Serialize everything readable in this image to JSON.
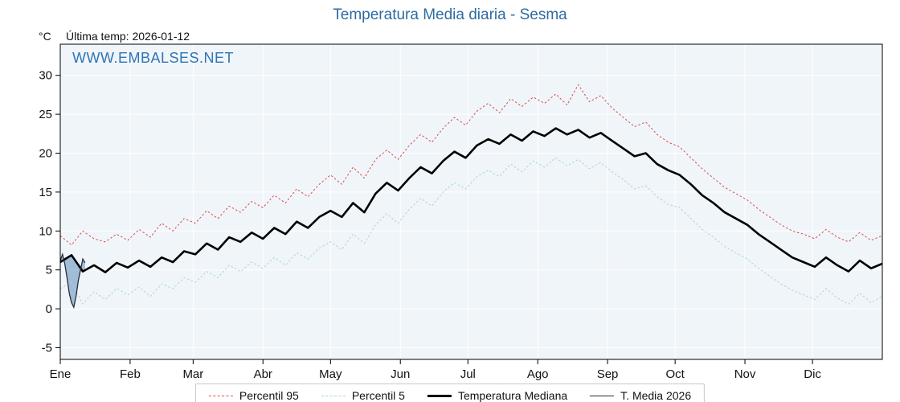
{
  "header": {
    "last_temp": "Última temp: 2026-01-12"
  },
  "watermark": {
    "text": "WWW.EMBALSES.NET"
  },
  "chart_data": {
    "type": "line",
    "title": "Temperatura Media diaria - Sesma",
    "ylabel": "°C",
    "xlabel": "",
    "grid": true,
    "legend_position": "bottom",
    "plot_bg": "#f0f5f9",
    "grid_color": "#ffffff",
    "ylim": [
      -6.5,
      34
    ],
    "yticks": [
      -5,
      0,
      5,
      10,
      15,
      20,
      25,
      30
    ],
    "xlim_days": [
      1,
      366
    ],
    "months": [
      {
        "label": "Ene",
        "start_day": 1
      },
      {
        "label": "Feb",
        "start_day": 32
      },
      {
        "label": "Mar",
        "start_day": 60
      },
      {
        "label": "Abr",
        "start_day": 91
      },
      {
        "label": "May",
        "start_day": 121
      },
      {
        "label": "Jun",
        "start_day": 152
      },
      {
        "label": "Jul",
        "start_day": 182
      },
      {
        "label": "Ago",
        "start_day": 213
      },
      {
        "label": "Sep",
        "start_day": 244
      },
      {
        "label": "Oct",
        "start_day": 274
      },
      {
        "label": "Nov",
        "start_day": 305
      },
      {
        "label": "Dic",
        "start_day": 335
      }
    ],
    "legend": [
      "Percentil 95",
      "Percentil 5",
      "Temperatura Mediana",
      "T. Media 2026"
    ],
    "x_days": [
      1,
      6,
      11,
      16,
      21,
      26,
      31,
      36,
      41,
      46,
      51,
      56,
      61,
      66,
      71,
      76,
      81,
      86,
      91,
      96,
      101,
      106,
      111,
      116,
      121,
      126,
      131,
      136,
      141,
      146,
      151,
      156,
      161,
      166,
      171,
      176,
      181,
      186,
      191,
      196,
      201,
      206,
      211,
      216,
      221,
      226,
      231,
      236,
      241,
      246,
      251,
      256,
      261,
      266,
      271,
      276,
      281,
      286,
      291,
      296,
      301,
      306,
      311,
      316,
      321,
      326,
      331,
      336,
      341,
      346,
      351,
      356,
      361,
      366
    ],
    "series": [
      {
        "name": "Percentil 95",
        "color": "#d94b4b",
        "dash": "2.5 2.5",
        "width": 1,
        "values": [
          9.4,
          8.2,
          10.0,
          9.0,
          8.6,
          9.6,
          8.8,
          10.2,
          9.2,
          11.0,
          10.0,
          11.6,
          11.0,
          12.6,
          11.6,
          13.2,
          12.4,
          13.8,
          13.0,
          14.6,
          13.6,
          15.4,
          14.4,
          16.0,
          17.2,
          16.0,
          18.2,
          16.8,
          19.2,
          20.4,
          19.2,
          21.0,
          22.4,
          21.4,
          23.2,
          24.6,
          23.6,
          25.4,
          26.4,
          25.2,
          27.0,
          26.0,
          27.2,
          26.4,
          27.6,
          26.2,
          28.8,
          26.6,
          27.4,
          25.8,
          24.6,
          23.4,
          24.0,
          22.4,
          21.4,
          20.8,
          19.4,
          18.0,
          16.8,
          15.6,
          14.8,
          14.0,
          12.8,
          11.8,
          10.8,
          10.0,
          9.6,
          9.0,
          10.2,
          9.2,
          8.6,
          9.8,
          8.8,
          9.4
        ]
      },
      {
        "name": "Percentil 5",
        "color": "#a7d3e8",
        "dash": "2.5 2.5",
        "width": 1,
        "values": [
          2.6,
          3.4,
          0.6,
          2.2,
          1.2,
          2.6,
          1.8,
          2.8,
          1.6,
          3.2,
          2.6,
          4.0,
          3.4,
          4.8,
          4.0,
          5.6,
          4.8,
          6.0,
          5.2,
          6.6,
          5.6,
          7.2,
          6.4,
          7.8,
          8.6,
          7.6,
          9.6,
          8.4,
          10.8,
          12.2,
          11.0,
          12.8,
          14.2,
          13.2,
          15.0,
          16.2,
          15.4,
          17.0,
          17.8,
          17.0,
          18.6,
          17.6,
          19.0,
          18.2,
          19.4,
          18.4,
          19.2,
          18.0,
          18.8,
          17.6,
          16.6,
          15.4,
          15.8,
          14.4,
          13.4,
          13.0,
          11.6,
          10.2,
          9.2,
          8.0,
          7.2,
          6.4,
          5.2,
          4.2,
          3.2,
          2.4,
          1.8,
          1.2,
          2.6,
          1.4,
          0.6,
          2.0,
          0.8,
          1.6
        ]
      },
      {
        "name": "Temperatura Mediana",
        "color": "#000000",
        "dash": null,
        "width": 2.6,
        "values": [
          6.0,
          6.9,
          4.8,
          5.6,
          4.7,
          5.9,
          5.3,
          6.2,
          5.4,
          6.6,
          6.0,
          7.4,
          7.0,
          8.4,
          7.6,
          9.2,
          8.6,
          9.8,
          9.0,
          10.4,
          9.6,
          11.2,
          10.4,
          11.8,
          12.6,
          11.8,
          13.6,
          12.4,
          14.8,
          16.2,
          15.2,
          16.8,
          18.2,
          17.4,
          19.0,
          20.2,
          19.4,
          21.0,
          21.8,
          21.2,
          22.4,
          21.6,
          22.8,
          22.2,
          23.2,
          22.4,
          23.0,
          22.0,
          22.6,
          21.6,
          20.6,
          19.6,
          20.0,
          18.6,
          17.8,
          17.2,
          16.0,
          14.6,
          13.6,
          12.4,
          11.6,
          10.8,
          9.6,
          8.6,
          7.6,
          6.6,
          6.0,
          5.4,
          6.6,
          5.6,
          4.8,
          6.2,
          5.2,
          5.8
        ]
      }
    ],
    "t2026": {
      "name": "T. Media 2026",
      "color": "#2a2a35",
      "width": 1.3,
      "days": [
        1,
        2,
        3,
        4,
        5,
        6,
        7,
        8,
        9,
        10,
        11,
        12
      ],
      "values": [
        6.2,
        7.0,
        5.8,
        4.0,
        2.0,
        0.8,
        0.2,
        1.6,
        3.6,
        5.0,
        6.4,
        5.9
      ]
    },
    "fill_2026": {
      "color": "#4f86b8",
      "opacity": 0.5
    }
  }
}
